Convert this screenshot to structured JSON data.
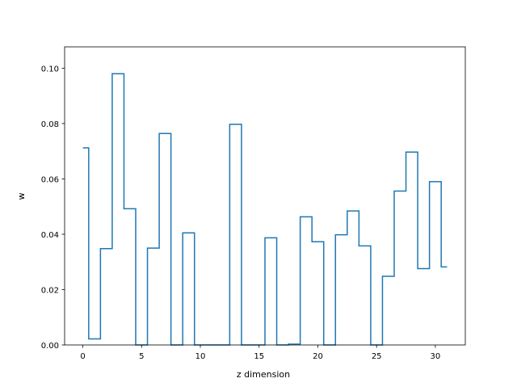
{
  "chart_data": {
    "type": "line",
    "drawstyle": "steps-mid",
    "xlabel": "z dimension",
    "ylabel": "w",
    "xlim": [
      -1.55,
      32.55
    ],
    "ylim": [
      0,
      0.1077
    ],
    "xticks": [
      0,
      5,
      10,
      15,
      20,
      25,
      30
    ],
    "yticks": [
      0.0,
      0.02,
      0.04,
      0.06,
      0.08,
      0.1
    ],
    "xtick_labels": [
      "0",
      "5",
      "10",
      "15",
      "20",
      "25",
      "30"
    ],
    "ytick_labels": [
      "0.00",
      "0.02",
      "0.04",
      "0.06",
      "0.08",
      "0.10"
    ],
    "grid": false,
    "color": "#1f77b4",
    "series": [
      {
        "x": [
          0,
          1,
          2,
          3,
          4,
          5,
          6,
          7,
          8,
          9,
          10,
          11,
          12,
          13,
          14,
          15,
          16,
          17,
          18,
          19,
          20,
          21,
          22,
          23,
          24,
          25,
          26,
          27,
          28,
          29,
          30,
          31
        ],
        "values": [
          0.0712,
          0.0022,
          0.0348,
          0.098,
          0.0492,
          0.0,
          0.035,
          0.0764,
          0.0,
          0.0405,
          0.0,
          0.0,
          0.0,
          0.0797,
          0.0,
          0.0,
          0.0387,
          0.0,
          0.0003,
          0.0463,
          0.0373,
          0.0,
          0.0398,
          0.0484,
          0.0358,
          0.0,
          0.0248,
          0.0556,
          0.0697,
          0.0276,
          0.059,
          0.0282
        ]
      }
    ]
  }
}
